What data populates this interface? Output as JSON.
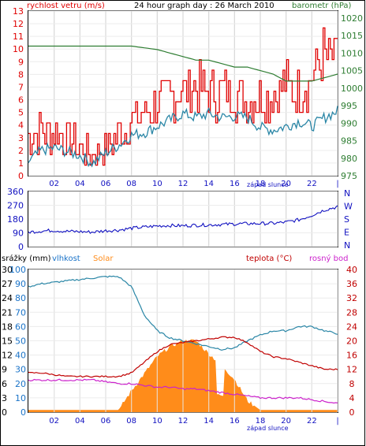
{
  "header": {
    "left_label": "rychlost vetru (m/s)",
    "title": "24 hour graph day : 26 March 2010",
    "right_label": "barometr (hPa)"
  },
  "colors": {
    "wind": "#e00000",
    "wind_avg": "#2a86a6",
    "pressure": "#2e7d32",
    "direction": "#1010c0",
    "humidity": "#2a86a6",
    "solar": "#ff8c1a",
    "temperature": "#c00000",
    "dewpoint": "#cc22cc",
    "rain": "#ff8c1a",
    "grid": "#d8d8d8",
    "axis_left": "#e00000",
    "axis_blue": "#1a73c8",
    "axis_right_green": "#2e7d32"
  },
  "hour_ticks": [
    "02",
    "04",
    "06",
    "08",
    "10",
    "12",
    "14",
    "16",
    "18",
    "20",
    "22",
    "|"
  ],
  "sunset_label": "západ slunce",
  "chart_data": [
    {
      "type": "line",
      "title": "24 hour graph day : 26 March 2010",
      "ylabel": "rychlost vetru (m/s)",
      "ylabel_right": "barometr (hPa)",
      "ylim": [
        0,
        13
      ],
      "ylim_right": [
        975,
        1022
      ],
      "yticks": [
        0,
        1,
        2,
        3,
        4,
        5,
        6,
        7,
        8,
        9,
        10,
        11,
        12,
        13
      ],
      "yticks_right": [
        975,
        980,
        985,
        990,
        995,
        1000,
        1005,
        1010,
        1015,
        1020
      ],
      "x_hours": [
        0,
        1,
        2,
        3,
        4,
        5,
        6,
        7,
        8,
        9,
        10,
        11,
        12,
        13,
        14,
        15,
        16,
        17,
        18,
        19,
        20,
        21,
        22,
        23,
        24
      ],
      "series": [
        {
          "name": "gust",
          "kind": "red",
          "values": [
            3.2,
            3.5,
            3.3,
            3.0,
            2.2,
            1.6,
            2.2,
            3.2,
            4.3,
            4.8,
            5.5,
            6.2,
            6.7,
            6.9,
            6.6,
            6.4,
            6.6,
            6.1,
            6.1,
            6.2,
            7.1,
            6.6,
            7.6,
            9.6,
            8.9
          ]
        },
        {
          "name": "average",
          "kind": "teal",
          "values": [
            1.1,
            2.0,
            2.2,
            1.9,
            1.6,
            1.0,
            1.8,
            2.4,
            3.2,
            3.4,
            3.9,
            4.4,
            4.9,
            4.6,
            4.9,
            4.6,
            4.7,
            4.6,
            3.8,
            3.6,
            3.9,
            4.3,
            3.9,
            4.6,
            5.1
          ]
        },
        {
          "name": "pressure",
          "kind": "green",
          "values": [
            1012,
            1012,
            1012,
            1012,
            1012,
            1012,
            1012,
            1012,
            1012,
            1011.5,
            1011,
            1010,
            1009,
            1008,
            1008,
            1007,
            1006,
            1006,
            1005,
            1004,
            1002,
            1002,
            1002,
            1003,
            1004
          ]
        }
      ]
    },
    {
      "type": "scatter",
      "ylim": [
        0,
        360
      ],
      "yticks": [
        0,
        90,
        180,
        270,
        360
      ],
      "compass_labels": [
        "N",
        "W",
        "S",
        "E",
        "N"
      ],
      "x_hours": [
        0,
        1,
        2,
        3,
        4,
        5,
        6,
        7,
        8,
        9,
        10,
        11,
        12,
        13,
        14,
        15,
        16,
        17,
        18,
        19,
        20,
        21,
        22,
        23,
        24
      ],
      "series": [
        {
          "name": "direction",
          "values": [
            95,
            102,
            106,
            100,
            98,
            95,
            104,
            108,
            120,
            128,
            135,
            138,
            136,
            140,
            142,
            145,
            148,
            150,
            151,
            152,
            160,
            175,
            205,
            240,
            260
          ]
        }
      ]
    },
    {
      "type": "line",
      "legend": [
        "srážky (mm)",
        "vlhkost",
        "Solar",
        "teplota (°C)",
        "rosný bod"
      ],
      "ylim_rain": [
        0,
        30
      ],
      "yticks_rain": [
        0,
        3,
        6,
        9,
        12,
        15,
        18,
        21,
        24,
        27,
        30
      ],
      "ylim_hum": [
        0,
        100
      ],
      "yticks_hum": [
        0,
        10,
        20,
        30,
        40,
        50,
        60,
        70,
        80,
        90,
        100
      ],
      "ylim_temp": [
        0,
        40
      ],
      "yticks_temp": [
        0,
        4,
        8,
        12,
        16,
        20,
        24,
        28,
        32,
        36,
        40
      ],
      "x_hours": [
        0,
        1,
        2,
        3,
        4,
        5,
        6,
        7,
        8,
        9,
        10,
        11,
        12,
        13,
        14,
        15,
        16,
        17,
        18,
        19,
        20,
        21,
        22,
        23,
        24
      ],
      "series": [
        {
          "name": "humidity",
          "values": [
            88,
            90,
            91,
            92,
            93,
            94,
            95,
            95,
            88,
            68,
            57,
            52,
            50,
            48,
            46,
            44,
            45,
            50,
            54,
            57,
            57,
            60,
            60,
            57,
            55
          ]
        },
        {
          "name": "solar",
          "values": [
            1.5,
            1.5,
            1.5,
            1.5,
            1.5,
            1.5,
            1.5,
            1.5,
            15,
            27,
            39,
            46,
            50,
            50,
            41,
            33,
            23,
            8,
            1.5,
            1.5,
            1.5,
            1.5,
            1.5,
            1.5,
            1.5
          ]
        },
        {
          "name": "temperature",
          "values": [
            11,
            11,
            10.5,
            10,
            10,
            10,
            10,
            10,
            11,
            14,
            17,
            19,
            19.5,
            20,
            20.5,
            21,
            21,
            19.5,
            17,
            15.5,
            15,
            14,
            13,
            12,
            12
          ]
        },
        {
          "name": "dewpoint",
          "values": [
            9,
            9,
            9,
            9,
            9,
            9,
            8.5,
            8,
            8,
            7.5,
            7,
            7,
            6.5,
            6.5,
            6,
            5.5,
            5,
            4.5,
            4,
            4,
            4,
            4,
            3.5,
            3,
            2.5
          ]
        }
      ]
    }
  ]
}
